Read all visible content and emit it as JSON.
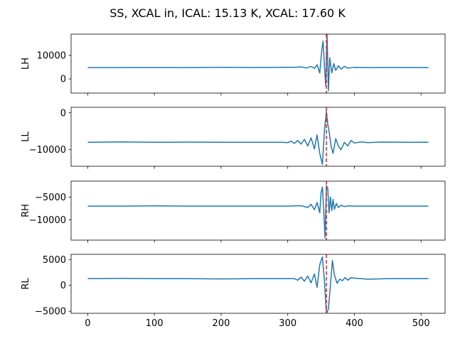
{
  "suptitle": "SS, XCAL in, ICAL: 15.13 K, XCAL: 17.60 K",
  "colors": {
    "line": "#1f77b4",
    "marker": "#d62728",
    "axes": "#000000"
  },
  "chart_data": {
    "type": "line",
    "title": "SS, XCAL in, ICAL: 15.13 K, XCAL: 17.60 K",
    "shared_x": true,
    "xlim": [
      -25,
      536
    ],
    "xticks": [
      0,
      100,
      200,
      300,
      400,
      500
    ],
    "grid": false,
    "legend": "none",
    "marker_line": {
      "x": 358,
      "style": "dashed",
      "color": "#d62728"
    },
    "panels": [
      {
        "ylabel": "LH",
        "ylim": [
          -6000,
          19000
        ],
        "yticks": [
          0,
          10000
        ],
        "baseline": 4800,
        "series": [
          {
            "x": [
              0,
              50,
              100,
              150,
              200,
              250,
              290,
              300,
              310,
              320,
              328,
              335,
              340,
              344,
              348,
              351,
              353,
              355,
              357,
              359,
              361,
              363,
              366,
              369,
              372,
              376,
              380,
              385,
              390,
              400,
              420,
              450,
              511
            ],
            "y": [
              4800,
              4800,
              4850,
              4800,
              4900,
              4850,
              4900,
              4950,
              4900,
              5100,
              4600,
              5300,
              4500,
              6000,
              2500,
              12000,
              16000,
              6000,
              -3000,
              19000,
              -5000,
              9000,
              2500,
              6500,
              3600,
              5600,
              4200,
              5300,
              4600,
              4900,
              4800,
              4850,
              4800
            ]
          }
        ]
      },
      {
        "ylabel": "LL",
        "ylim": [
          -14500,
          1500
        ],
        "yticks": [
          -10000,
          0
        ],
        "baseline": -8000,
        "series": [
          {
            "x": [
              0,
              50,
              100,
              150,
              200,
              250,
              290,
              300,
              305,
              310,
              315,
              320,
              325,
              330,
              335,
              340,
              344,
              348,
              352,
              355,
              358,
              360,
              362,
              365,
              368,
              372,
              376,
              380,
              385,
              390,
              395,
              400,
              410,
              420,
              440,
              480,
              511
            ],
            "y": [
              -8000,
              -7900,
              -8000,
              -7950,
              -8000,
              -8000,
              -8000,
              -8100,
              -7700,
              -8300,
              -7500,
              -8500,
              -7200,
              -9000,
              -6800,
              -9800,
              -6000,
              -11000,
              -14000,
              -5000,
              400,
              -3000,
              -5000,
              -9000,
              -11000,
              -7000,
              -9000,
              -10000,
              -8000,
              -9000,
              -7500,
              -8200,
              -7900,
              -8100,
              -7950,
              -8000,
              -8000
            ]
          }
        ]
      },
      {
        "ylabel": "RH",
        "ylim": [
          -14500,
          -1500
        ],
        "yticks": [
          -10000,
          -5000
        ],
        "baseline": -7000,
        "series": [
          {
            "x": [
              0,
              50,
              100,
              150,
              200,
              250,
              300,
              320,
              330,
              335,
              340,
              344,
              348,
              350,
              352,
              354,
              356,
              358,
              360,
              362,
              364,
              366,
              368,
              370,
              373,
              376,
              380,
              385,
              390,
              400,
              450,
              511
            ],
            "y": [
              -7000,
              -7000,
              -6950,
              -7000,
              -7000,
              -7000,
              -7000,
              -6900,
              -7300,
              -6600,
              -7800,
              -6200,
              -8500,
              -4000,
              -2800,
              -8000,
              -14000,
              -2500,
              -3000,
              -8500,
              -5000,
              -8000,
              -5500,
              -7700,
              -6400,
              -7300,
              -6800,
              -7100,
              -6950,
              -7000,
              -7000,
              -7000
            ]
          }
        ]
      },
      {
        "ylabel": "RL",
        "ylim": [
          -5400,
          6000
        ],
        "yticks": [
          -5000,
          0,
          5000
        ],
        "baseline": 1300,
        "series": [
          {
            "x": [
              0,
              50,
              100,
              150,
              200,
              250,
              300,
              310,
              315,
              320,
              325,
              330,
              335,
              340,
              344,
              348,
              352,
              355,
              358,
              361,
              364,
              367,
              370,
              374,
              378,
              382,
              386,
              390,
              395,
              400,
              410,
              420,
              450,
              480,
              511
            ],
            "y": [
              1300,
              1350,
              1300,
              1300,
              1250,
              1300,
              1300,
              1300,
              1000,
              1600,
              800,
              1800,
              500,
              2200,
              -400,
              4000,
              5500,
              1000,
              -5400,
              -4600,
              0,
              4800,
              2000,
              400,
              1200,
              900,
              1500,
              1000,
              1500,
              1400,
              1300,
              1200,
              1300,
              1300,
              1300
            ]
          }
        ]
      }
    ]
  }
}
